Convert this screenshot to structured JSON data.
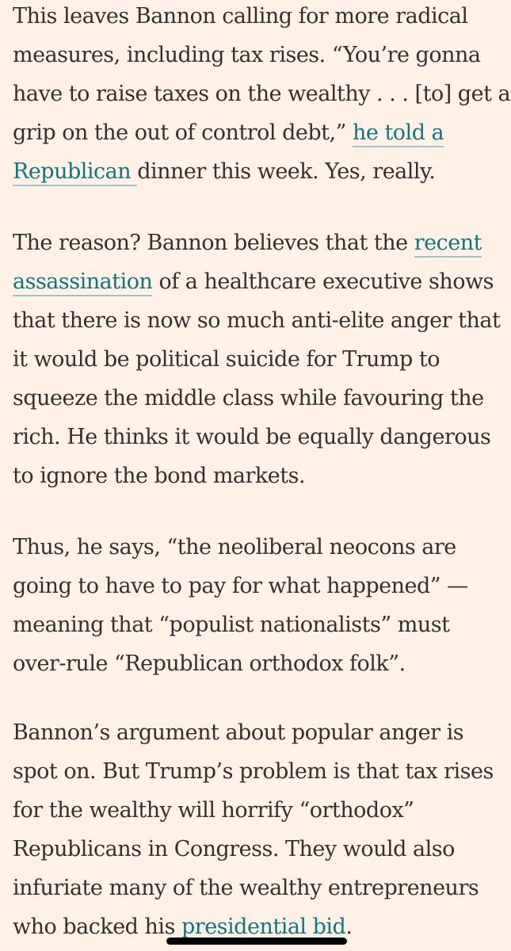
{
  "paragraphs": [
    {
      "lines": [
        [
          "This leaves Bannon calling for more radical"
        ],
        [
          "measures, including tax rises. “You’re gonna"
        ],
        [
          "have to raise taxes on the wealthy . . . [to] get a"
        ],
        [
          "grip on the out of control debt,” ",
          {
            "link": "he told a"
          }
        ],
        [
          {
            "link": "Republican "
          },
          " dinner this week. Yes, really."
        ]
      ]
    },
    {
      "lines": [
        [
          "The reason? Bannon believes that the ",
          {
            "link": "recent"
          }
        ],
        [
          {
            "link": "assassination"
          },
          " of a healthcare executive shows"
        ],
        [
          "that there is now so much anti-elite anger that"
        ],
        [
          "it would be political suicide for Trump to"
        ],
        [
          "squeeze the middle class while favouring the"
        ],
        [
          "rich. He thinks it would be equally dangerous"
        ],
        [
          "to ignore the bond markets."
        ]
      ]
    },
    {
      "lines": [
        [
          "Thus, he says, “the neoliberal neocons are"
        ],
        [
          "going to have to pay for what happened” —"
        ],
        [
          "meaning that “populist nationalists” must"
        ],
        [
          "over-rule “Republican orthodox folk”."
        ]
      ]
    },
    {
      "lines": [
        [
          "Bannon’s argument about popular anger is"
        ],
        [
          "spot on. But Trump’s problem is that tax rises"
        ],
        [
          "for the wealthy will horrify “orthodox”"
        ],
        [
          "Republicans in Congress. They would also"
        ],
        [
          "infuriate many of the wealthy entrepreneurs"
        ],
        [
          "who backed his ",
          {
            "link": "presidential bid"
          },
          "."
        ]
      ]
    }
  ]
}
